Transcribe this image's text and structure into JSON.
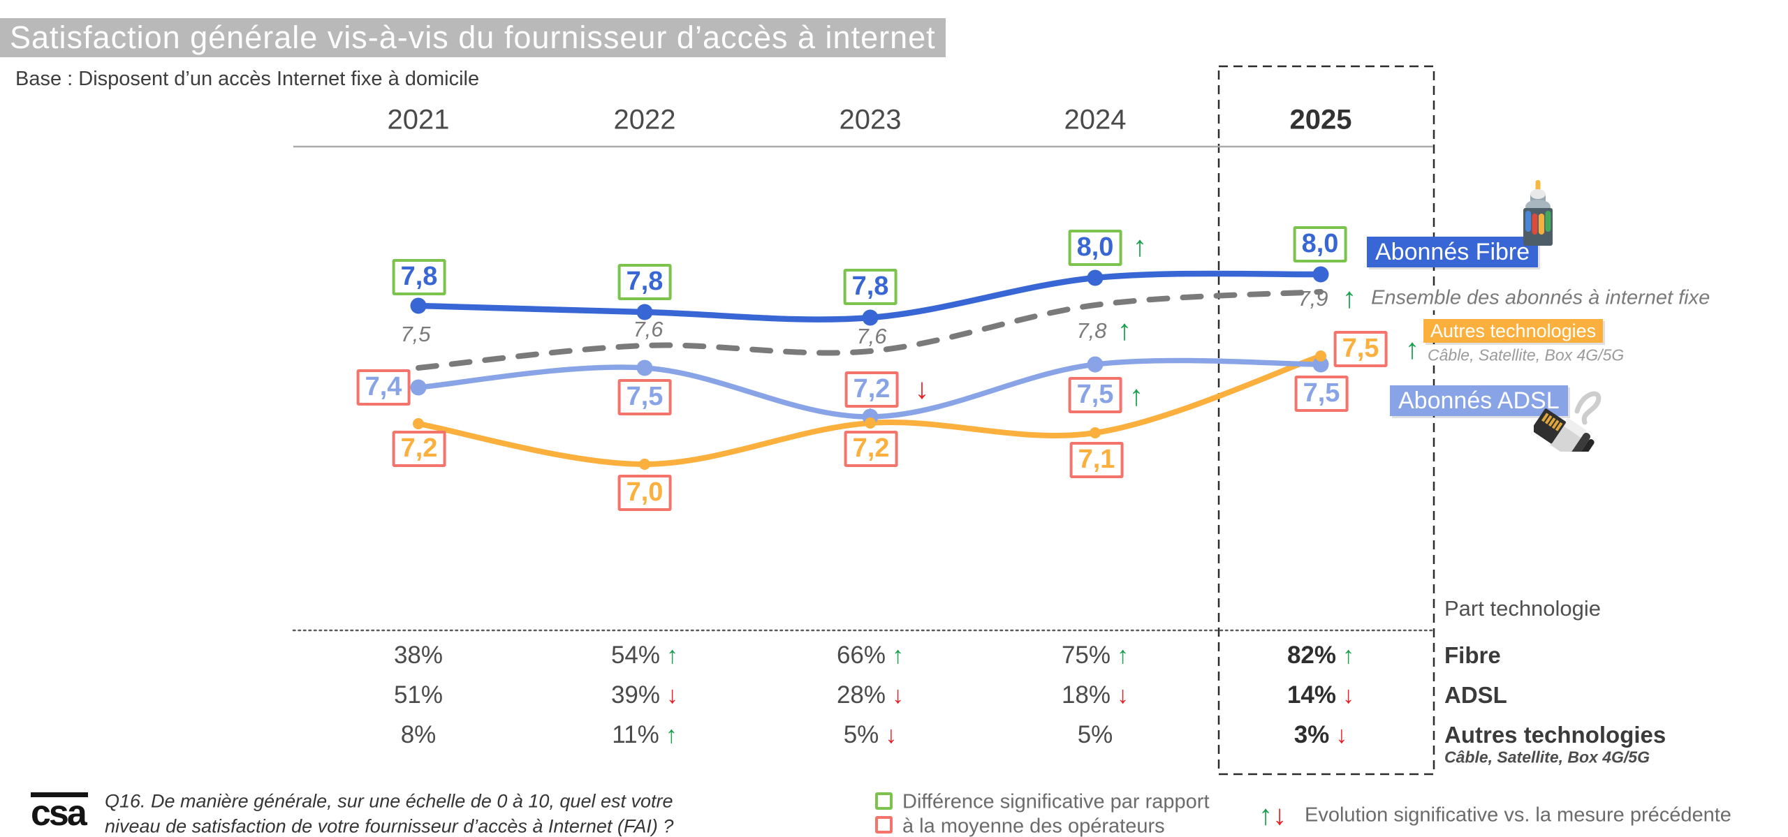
{
  "header": {
    "title": "Satisfaction générale vis-à-vis du fournisseur d’accès à internet",
    "base": "Base : Disposent d’un accès Internet fixe à domicile"
  },
  "chart_data": {
    "type": "line",
    "x": [
      "2021",
      "2022",
      "2023",
      "2024",
      "2025"
    ],
    "ylim": [
      6.6,
      8.4
    ],
    "grid": false,
    "highlight_column": "2025",
    "series": [
      {
        "name": "Abonnés Fibre",
        "color": "#3866D4",
        "style": "solid",
        "box": "green",
        "values": [
          7.8,
          7.8,
          7.8,
          8.0,
          8.0
        ],
        "labels": [
          "7,8",
          "7,8",
          "7,8",
          "8,0",
          "8,0"
        ],
        "arrows": [
          null,
          null,
          null,
          "up",
          null
        ]
      },
      {
        "name": "Ensemble des abonnés à internet fixe",
        "color": "#7a7a7a",
        "style": "dashed",
        "box": "none",
        "values": [
          7.5,
          7.6,
          7.6,
          7.8,
          7.9
        ],
        "labels": [
          "7,5",
          "7,6",
          "7,6",
          "7,8",
          "7,9"
        ],
        "arrows": [
          null,
          null,
          null,
          "up",
          "up"
        ]
      },
      {
        "name": "Abonnés ADSL",
        "color": "#88A4E7",
        "style": "solid",
        "box": "red",
        "values": [
          7.4,
          7.5,
          7.2,
          7.5,
          7.5
        ],
        "labels": [
          "7,4",
          "7,5",
          "7,2",
          "7,5",
          "7,5"
        ],
        "arrows": [
          null,
          null,
          "down",
          "up",
          null
        ]
      },
      {
        "name": "Autres technologies",
        "subtitle": "Câble, Satellite, Box 4G/5G",
        "color": "#FBAF3C",
        "style": "solid",
        "box": "red",
        "values": [
          7.2,
          7.0,
          7.2,
          7.1,
          7.5
        ],
        "labels": [
          "7,2",
          "7,0",
          "7,2",
          "7,1",
          "7,5"
        ],
        "arrows": [
          null,
          null,
          null,
          null,
          "up"
        ]
      }
    ],
    "share_table": {
      "title": "Part technologie",
      "rows": [
        {
          "label": "Fibre",
          "values": [
            "38%",
            "54%",
            "66%",
            "75%",
            "82%"
          ],
          "arrows": [
            null,
            "up",
            "up",
            "up",
            "up"
          ]
        },
        {
          "label": "ADSL",
          "values": [
            "51%",
            "39%",
            "28%",
            "18%",
            "14%"
          ],
          "arrows": [
            null,
            "down",
            "down",
            "down",
            "down"
          ]
        },
        {
          "label": "Autres technologies",
          "sublabel": "Câble, Satellite, Box 4G/5G",
          "values": [
            "8%",
            "11%",
            "5%",
            "5%",
            "3%"
          ],
          "arrows": [
            null,
            "up",
            "down",
            null,
            "down"
          ]
        }
      ]
    }
  },
  "legend": {
    "fibre_label": "Abonnés Fibre",
    "ensemble_label": "Ensemble des abonnés à internet fixe",
    "autres_label": "Autres technologies",
    "autres_sublabel": "Câble, Satellite, Box 4G/5G",
    "adsl_label": "Abonnés ADSL"
  },
  "significance": {
    "diff_line1": "Différence significative par rapport",
    "diff_line2": "à la moyenne des opérateurs",
    "evolution_text": "Evolution significative vs. la mesure précédente",
    "up_glyph": "↑",
    "down_glyph": "↓"
  },
  "footer": {
    "logo_text": "csa",
    "question_line1": "Q16. De manière générale, sur une échelle de 0 à 10, quel est votre",
    "question_line2": "niveau de satisfaction de votre fournisseur d’accès à Internet (FAI) ?"
  },
  "colors": {
    "fibre": "#3866D4",
    "adsl": "#88A4E7",
    "autres": "#FBAF3C",
    "ensemble": "#7a7a7a",
    "sig_green": "#7CC34D",
    "sig_red": "#F4736B",
    "arrow_green": "#18A04C",
    "arrow_red": "#EC1C24",
    "title_bg": "#B9B9B9"
  }
}
